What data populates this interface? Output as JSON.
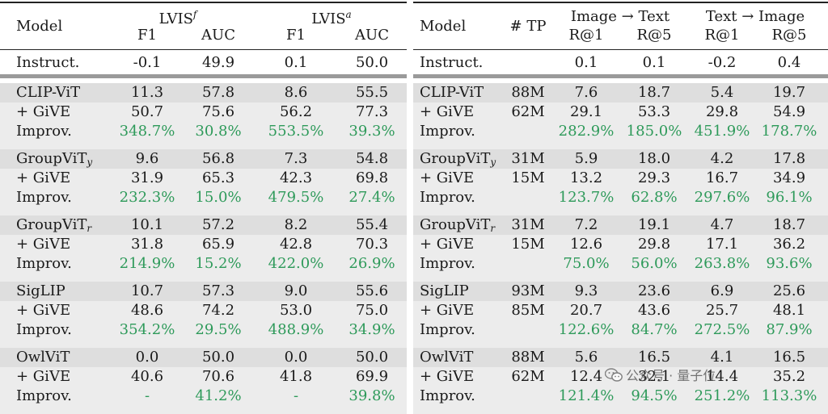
{
  "left_table": {
    "headers": {
      "model": "Model",
      "lvis_f": "LVIS",
      "lvis_f_sup": "f",
      "lvis_a": "LVIS",
      "lvis_a_sup": "a",
      "sub_cols": [
        "F1",
        "AUC",
        "F1",
        "AUC"
      ]
    },
    "instruct": {
      "label": "Instruct.",
      "values": [
        "-0.1",
        "49.9",
        "0.1",
        "50.0"
      ]
    },
    "groups": [
      {
        "name": "CLIP-ViT",
        "sub": "",
        "base": [
          "11.3",
          "57.8",
          "8.6",
          "55.5"
        ],
        "give": [
          "50.7",
          "75.6",
          "56.2",
          "77.3"
        ],
        "improv": [
          "348.7%",
          "30.8%",
          "553.5%",
          "39.3%"
        ]
      },
      {
        "name": "GroupViT",
        "sub": "y",
        "base": [
          "9.6",
          "56.8",
          "7.3",
          "54.8"
        ],
        "give": [
          "31.9",
          "65.3",
          "42.3",
          "69.8"
        ],
        "improv": [
          "232.3%",
          "15.0%",
          "479.5%",
          "27.4%"
        ]
      },
      {
        "name": "GroupViT",
        "sub": "r",
        "base": [
          "10.1",
          "57.2",
          "8.2",
          "55.4"
        ],
        "give": [
          "31.8",
          "65.9",
          "42.8",
          "70.3"
        ],
        "improv": [
          "214.9%",
          "15.2%",
          "422.0%",
          "26.9%"
        ]
      },
      {
        "name": "SigLIP",
        "sub": "",
        "base": [
          "10.7",
          "57.3",
          "9.0",
          "55.6"
        ],
        "give": [
          "48.6",
          "74.2",
          "53.0",
          "75.0"
        ],
        "improv": [
          "354.2%",
          "29.5%",
          "488.9%",
          "34.9%"
        ]
      },
      {
        "name": "OwlViT",
        "sub": "",
        "base": [
          "0.0",
          "50.0",
          "0.0",
          "50.0"
        ],
        "give": [
          "40.6",
          "70.6",
          "41.8",
          "69.9"
        ],
        "improv": [
          "-",
          "41.2%",
          "-",
          "39.8%"
        ]
      }
    ],
    "give_label": "+ GiVE",
    "improv_label": "Improv."
  },
  "right_table": {
    "headers": {
      "model": "Model",
      "tp": "# TP",
      "i2t": "Image → Text",
      "t2i": "Text → Image",
      "sub_cols": [
        "R@1",
        "R@5",
        "R@1",
        "R@5"
      ]
    },
    "instruct": {
      "label": "Instruct.",
      "values": [
        "0.1",
        "0.1",
        "-0.2",
        "0.4"
      ]
    },
    "groups": [
      {
        "name": "CLIP-ViT",
        "sub": "",
        "tp_base": "88M",
        "tp_give": "62M",
        "base": [
          "7.6",
          "18.7",
          "5.4",
          "19.7"
        ],
        "give": [
          "29.1",
          "53.3",
          "29.8",
          "54.9"
        ],
        "improv": [
          "282.9%",
          "185.0%",
          "451.9%",
          "178.7%"
        ]
      },
      {
        "name": "GroupViT",
        "sub": "y",
        "tp_base": "31M",
        "tp_give": "15M",
        "base": [
          "5.9",
          "18.0",
          "4.2",
          "17.8"
        ],
        "give": [
          "13.2",
          "29.3",
          "16.7",
          "34.9"
        ],
        "improv": [
          "123.7%",
          "62.8%",
          "297.6%",
          "96.1%"
        ]
      },
      {
        "name": "GroupViT",
        "sub": "r",
        "tp_base": "31M",
        "tp_give": "15M",
        "base": [
          "7.2",
          "19.1",
          "4.7",
          "18.7"
        ],
        "give": [
          "12.6",
          "29.8",
          "17.1",
          "36.2"
        ],
        "improv": [
          "75.0%",
          "56.0%",
          "263.8%",
          "93.6%"
        ]
      },
      {
        "name": "SigLIP",
        "sub": "",
        "tp_base": "93M",
        "tp_give": "85M",
        "base": [
          "9.3",
          "23.6",
          "6.9",
          "25.6"
        ],
        "give": [
          "20.7",
          "43.6",
          "25.7",
          "48.1"
        ],
        "improv": [
          "122.6%",
          "84.7%",
          "272.5%",
          "87.9%"
        ]
      },
      {
        "name": "OwlViT",
        "sub": "",
        "tp_base": "88M",
        "tp_give": "62M",
        "base": [
          "5.6",
          "16.5",
          "4.1",
          "16.5"
        ],
        "give": [
          "12.4",
          "32.1",
          "14.4",
          "35.2"
        ],
        "improv": [
          "121.4%",
          "94.5%",
          "251.2%",
          "113.3%"
        ]
      }
    ],
    "give_label": "+ GiVE",
    "improv_label": "Improv."
  },
  "watermark": {
    "text": "公众号 · 量子位"
  },
  "colors": {
    "improvement": "#2e9a5a",
    "row_highlight": "#dedede",
    "group_bg": "#ececec"
  }
}
